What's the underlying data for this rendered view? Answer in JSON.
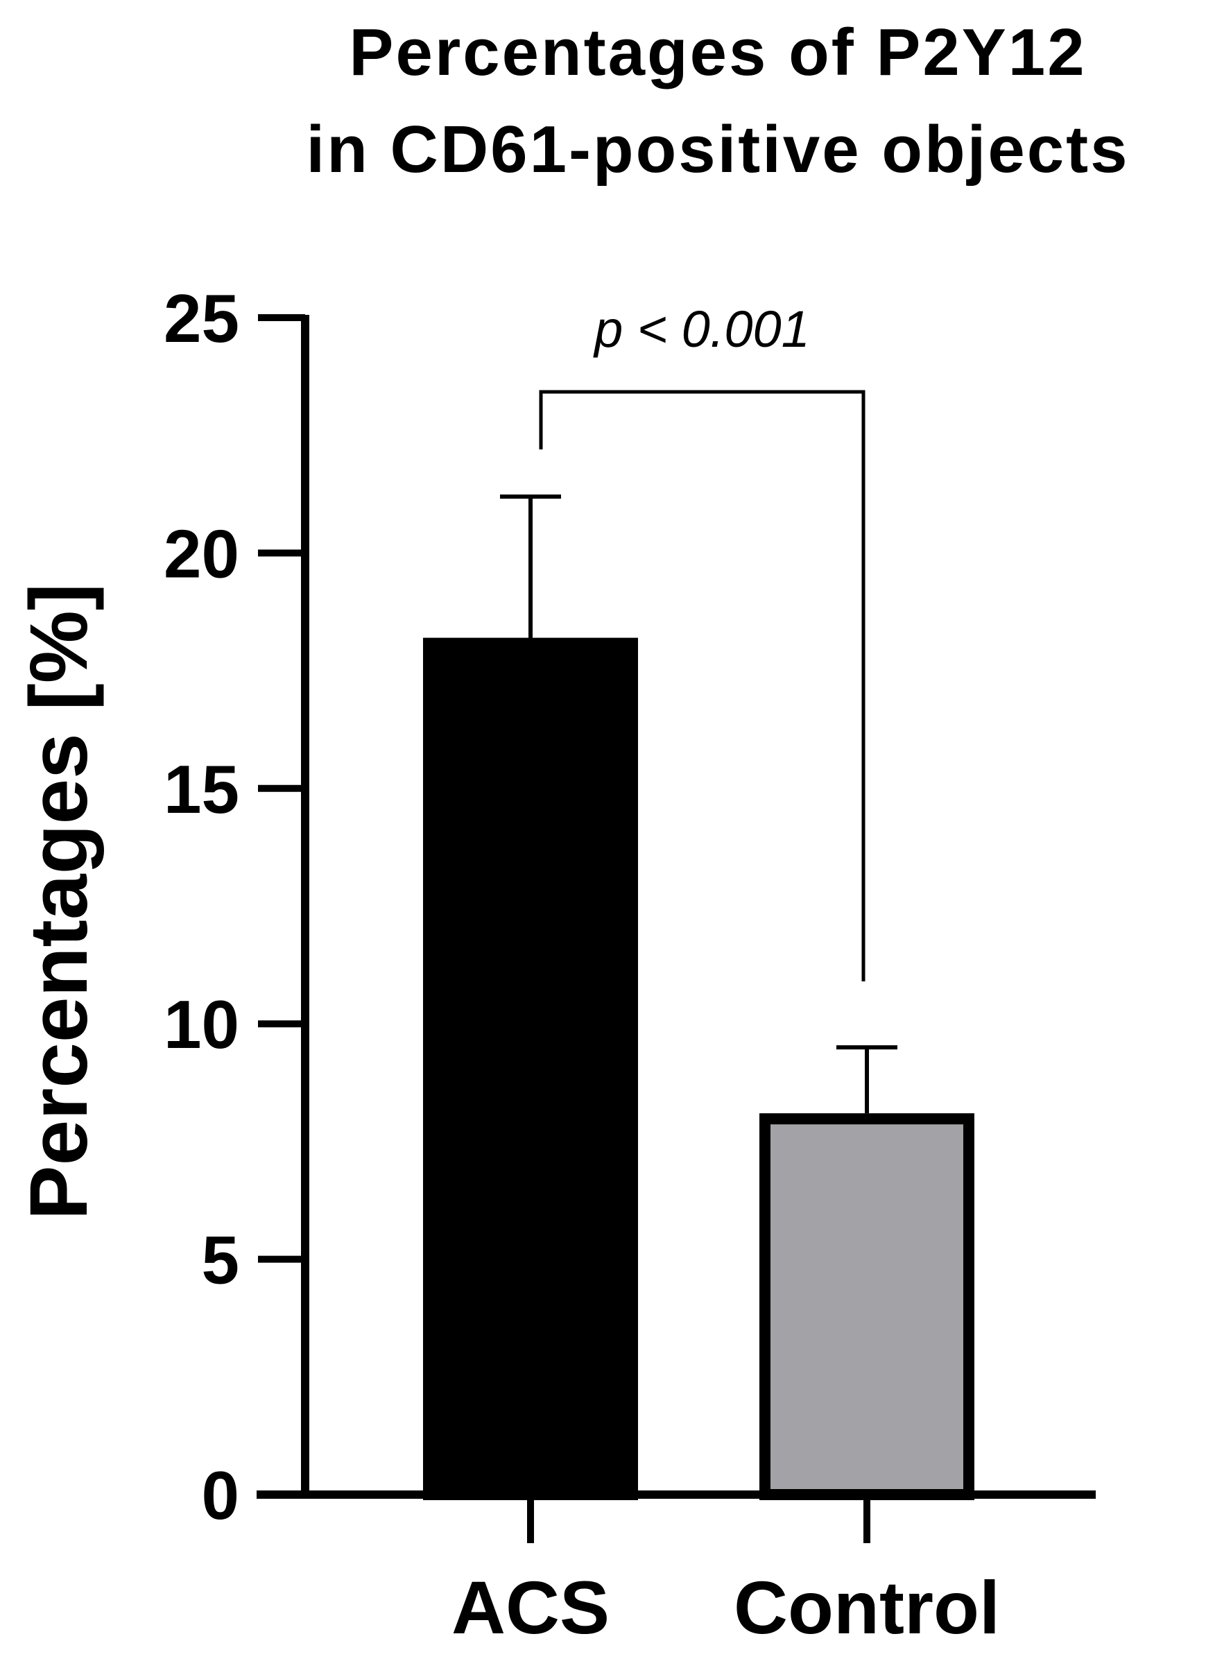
{
  "chart_data": {
    "type": "bar",
    "title": "Percentages of P2Y12 in CD61-positive objects",
    "title_lines": [
      "Percentages of P2Y12",
      "in CD61-positive objects"
    ],
    "xlabel": "",
    "ylabel": "Percentages [%]",
    "categories": [
      "ACS",
      "Control"
    ],
    "values": [
      18.2,
      8.1
    ],
    "error_upper": [
      21.2,
      9.5
    ],
    "bar_colors": [
      "#000000",
      "#a3a3a7"
    ],
    "bar_edge_color": "#000000",
    "ylim": [
      0,
      25
    ],
    "yticks": [
      0,
      5,
      10,
      15,
      20,
      25
    ],
    "ytick_labels": [
      "0",
      "5",
      "10",
      "15",
      "20",
      "25"
    ],
    "grid": false,
    "legend": "none",
    "annotation": {
      "text": "p < 0.001",
      "between": [
        "ACS",
        "Control"
      ]
    }
  }
}
